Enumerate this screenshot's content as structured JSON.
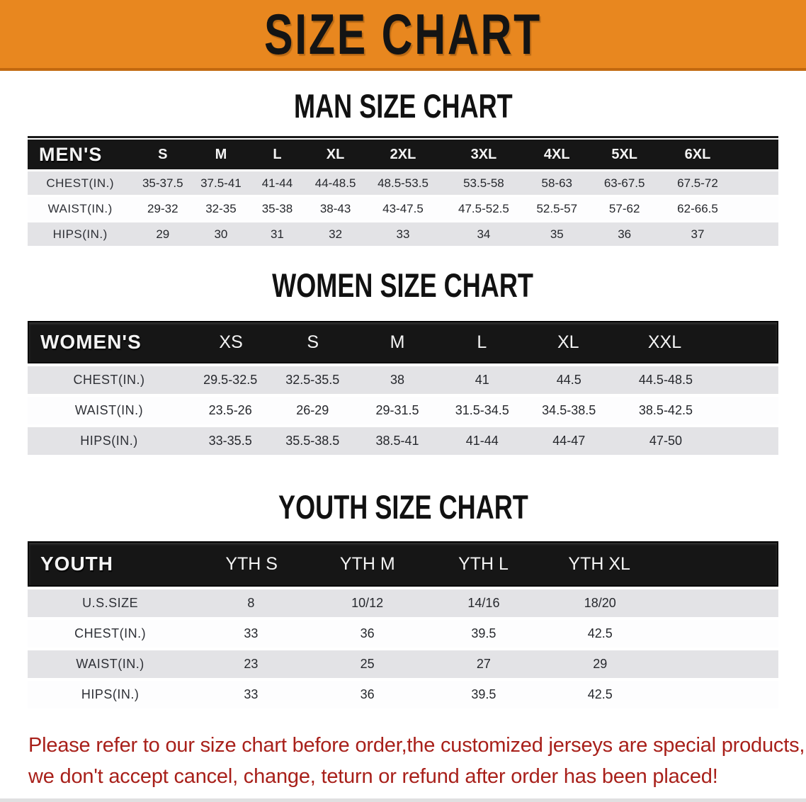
{
  "banner": {
    "title": "SIZE CHART"
  },
  "colors": {
    "banner_orange": "#E8871F",
    "banner_orange_dark": "#C2690F",
    "header_black": "#161616",
    "row_gray": "#E3E3E6",
    "row_white": "#FDFDFE",
    "footnote_red": "#A8201A"
  },
  "sections": [
    {
      "id": "men",
      "title": "MAN SIZE CHART",
      "header_label": "MEN'S",
      "sizes": [
        "S",
        "M",
        "L",
        "XL",
        "2XL",
        "3XL",
        "4XL",
        "5XL",
        "6XL"
      ],
      "rows": [
        {
          "label": "CHEST(IN.)",
          "values": [
            "35-37.5",
            "37.5-41",
            "41-44",
            "44-48.5",
            "48.5-53.5",
            "53.5-58",
            "58-63",
            "63-67.5",
            "67.5-72"
          ]
        },
        {
          "label": "WAIST(IN.)",
          "values": [
            "29-32",
            "32-35",
            "35-38",
            "38-43",
            "43-47.5",
            "47.5-52.5",
            "52.5-57",
            "57-62",
            "62-66.5"
          ]
        },
        {
          "label": "HIPS(IN.)",
          "values": [
            "29",
            "30",
            "31",
            "32",
            "33",
            "34",
            "35",
            "36",
            "37"
          ]
        }
      ]
    },
    {
      "id": "women",
      "title": "WOMEN SIZE CHART",
      "header_label": "WOMEN'S",
      "sizes": [
        "XS",
        "S",
        "M",
        "L",
        "XL",
        "XXL"
      ],
      "rows": [
        {
          "label": "CHEST(IN.)",
          "values": [
            "29.5-32.5",
            "32.5-35.5",
            "38",
            "41",
            "44.5",
            "44.5-48.5"
          ]
        },
        {
          "label": "WAIST(IN.)",
          "values": [
            "23.5-26",
            "26-29",
            "29-31.5",
            "31.5-34.5",
            "34.5-38.5",
            "38.5-42.5"
          ]
        },
        {
          "label": "HIPS(IN.)",
          "values": [
            "33-35.5",
            "35.5-38.5",
            "38.5-41",
            "41-44",
            "44-47",
            "47-50"
          ]
        }
      ]
    },
    {
      "id": "youth",
      "title": "YOUTH SIZE CHART",
      "header_label": "YOUTH",
      "sizes": [
        "YTH S",
        "YTH M",
        "YTH L",
        "YTH XL"
      ],
      "rows": [
        {
          "label": "U.S.SIZE",
          "values": [
            "8",
            "10/12",
            "14/16",
            "18/20"
          ]
        },
        {
          "label": "CHEST(IN.)",
          "values": [
            "33",
            "36",
            "39.5",
            "42.5"
          ]
        },
        {
          "label": "WAIST(IN.)",
          "values": [
            "23",
            "25",
            "27",
            "29"
          ]
        },
        {
          "label": "HIPS(IN.)",
          "values": [
            "33",
            "36",
            "39.5",
            "42.5"
          ]
        }
      ]
    }
  ],
  "footnote": {
    "line1": "Please refer to our size chart before order,the customized jerseys are special products,",
    "line2": "we don't accept cancel, change, teturn or refund after order has been placed!"
  }
}
